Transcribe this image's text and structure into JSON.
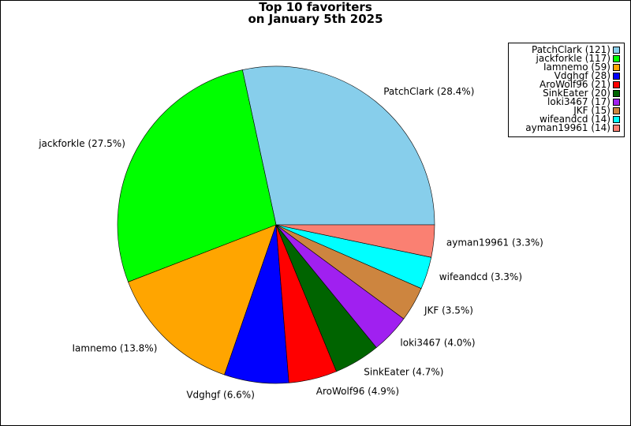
{
  "chart_data": {
    "type": "pie",
    "title_line1": "Top 10 favoriters",
    "title_line2": "on January 5th 2025",
    "start_angle_deg": 0,
    "direction": "counterclockwise",
    "legend_position": "top-right",
    "slices": [
      {
        "name": "PatchClark",
        "value": 121,
        "percent_label": "PatchClark (28.4%)",
        "legend_label": "PatchClark (121)",
        "color": "#87CEEB"
      },
      {
        "name": "jackforkle",
        "value": 117,
        "percent_label": "jackforkle (27.5%)",
        "legend_label": "jackforkle (117)",
        "color": "#00FF00"
      },
      {
        "name": "Iamnemo",
        "value": 59,
        "percent_label": "Iamnemo (13.8%)",
        "legend_label": "Iamnemo (59)",
        "color": "#FFA500"
      },
      {
        "name": "Vdghgf",
        "value": 28,
        "percent_label": "Vdghgf (6.6%)",
        "legend_label": "Vdghgf (28)",
        "color": "#0000FF"
      },
      {
        "name": "AroWolf96",
        "value": 21,
        "percent_label": "AroWolf96 (4.9%)",
        "legend_label": "AroWolf96 (21)",
        "color": "#FF0000"
      },
      {
        "name": "SinkEater",
        "value": 20,
        "percent_label": "SinkEater (4.7%)",
        "legend_label": "SinkEater (20)",
        "color": "#006400"
      },
      {
        "name": "loki3467",
        "value": 17,
        "percent_label": "loki3467 (4.0%)",
        "legend_label": "loki3467 (17)",
        "color": "#A020F0"
      },
      {
        "name": "JKF",
        "value": 15,
        "percent_label": "JKF (3.5%)",
        "legend_label": "JKF (15)",
        "color": "#CD853F"
      },
      {
        "name": "wifeandcd",
        "value": 14,
        "percent_label": "wifeandcd (3.3%)",
        "legend_label": "wifeandcd (14)",
        "color": "#00FFFF"
      },
      {
        "name": "ayman19961",
        "value": 14,
        "percent_label": "ayman19961 (3.3%)",
        "legend_label": "ayman19961 (14)",
        "color": "#FA8072"
      }
    ]
  }
}
